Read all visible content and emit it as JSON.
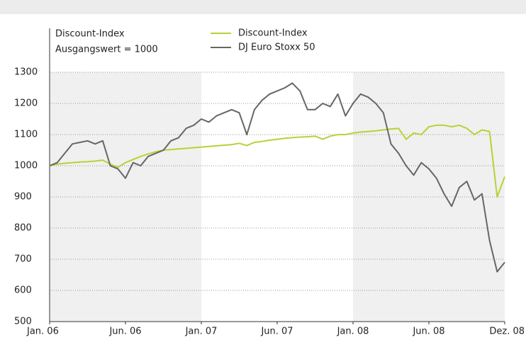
{
  "chart_data": {
    "type": "line",
    "annotations": [
      "Discount-Index",
      "Ausgangswert = 1000"
    ],
    "x": [
      0,
      0.1,
      0.2,
      0.3,
      0.4,
      0.5,
      0.6,
      0.7,
      0.8,
      0.9,
      1,
      1.1,
      1.2,
      1.3,
      1.4,
      1.5,
      1.6,
      1.7,
      1.8,
      1.9,
      2,
      2.1,
      2.2,
      2.3,
      2.4,
      2.5,
      2.6,
      2.7,
      2.8,
      2.9,
      3,
      3.1,
      3.2,
      3.3,
      3.4,
      3.5,
      3.6,
      3.7,
      3.8,
      3.9,
      4,
      4.1,
      4.2,
      4.3,
      4.4,
      4.5,
      4.6,
      4.7,
      4.8,
      4.9,
      5,
      5.1,
      5.2,
      5.3,
      5.4,
      5.5,
      5.6,
      5.7,
      5.8,
      5.9,
      6
    ],
    "series": [
      {
        "name": "Discount-Index",
        "color": "#b5d334",
        "values": [
          1000,
          1005,
          1008,
          1010,
          1012,
          1013,
          1015,
          1018,
          1005,
          995,
          1010,
          1020,
          1030,
          1038,
          1045,
          1050,
          1052,
          1054,
          1056,
          1058,
          1060,
          1062,
          1064,
          1066,
          1068,
          1072,
          1065,
          1075,
          1078,
          1082,
          1085,
          1088,
          1090,
          1092,
          1093,
          1095,
          1085,
          1095,
          1100,
          1100,
          1105,
          1108,
          1110,
          1112,
          1115,
          1118,
          1120,
          1085,
          1105,
          1100,
          1125,
          1130,
          1130,
          1125,
          1130,
          1120,
          1100,
          1115,
          1110,
          900,
          965
        ]
      },
      {
        "name": "DJ Euro Stoxx 50",
        "color": "#666666",
        "values": [
          1000,
          1010,
          1040,
          1070,
          1075,
          1080,
          1070,
          1080,
          1000,
          990,
          960,
          1010,
          1000,
          1030,
          1040,
          1050,
          1080,
          1090,
          1120,
          1130,
          1150,
          1140,
          1160,
          1170,
          1180,
          1170,
          1100,
          1180,
          1210,
          1230,
          1240,
          1250,
          1265,
          1240,
          1180,
          1180,
          1200,
          1190,
          1230,
          1160,
          1200,
          1230,
          1220,
          1200,
          1170,
          1070,
          1040,
          1000,
          970,
          1010,
          990,
          960,
          910,
          870,
          930,
          950,
          890,
          910,
          760,
          660,
          690
        ]
      }
    ],
    "xlim": [
      0,
      6
    ],
    "xticks": [
      {
        "value": 0,
        "label": "Jan. 06"
      },
      {
        "value": 1,
        "label": "Jun. 06"
      },
      {
        "value": 2,
        "label": "Jan. 07"
      },
      {
        "value": 3,
        "label": "Jun. 07"
      },
      {
        "value": 4,
        "label": "Jan. 08"
      },
      {
        "value": 5,
        "label": "Jun. 08"
      },
      {
        "value": 6,
        "label": "Dez. 08"
      }
    ],
    "ylim": [
      500,
      1300
    ],
    "yticks": [
      500,
      600,
      700,
      800,
      900,
      1000,
      1100,
      1200,
      1300
    ],
    "grid": true
  }
}
